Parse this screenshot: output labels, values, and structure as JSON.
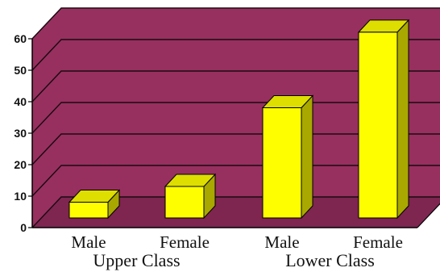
{
  "chart_data": {
    "type": "bar",
    "categories": [
      "Male",
      "Female",
      "Male",
      "Female"
    ],
    "groups": [
      {
        "label": "Upper Class",
        "categories": [
          0,
          1
        ]
      },
      {
        "label": "Lower Class",
        "categories": [
          2,
          3
        ]
      }
    ],
    "values": [
      5,
      10,
      35,
      59
    ],
    "ylim": [
      0,
      60
    ],
    "yticks": [
      "0",
      "10",
      "20",
      "30",
      "40",
      "50",
      "60"
    ],
    "grid": true,
    "style": "3d",
    "colors": {
      "wall": "#97305f",
      "floor": "#7e2550",
      "gridline": "#1a0a10",
      "bar_front": "#fefe00",
      "bar_top": "#dede00",
      "bar_side": "#a8a800",
      "outline": "#000000"
    }
  }
}
